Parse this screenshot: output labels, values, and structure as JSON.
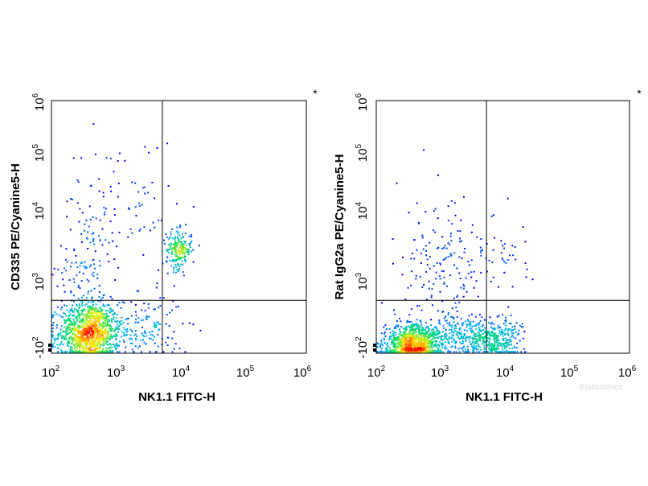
{
  "chart_data": [
    {
      "type": "scatter",
      "subtype": "flow-cytometry-density-dot-plot",
      "title": "",
      "xlabel": "NK1.1 FITC-H",
      "ylabel": "CD335 PE/Cyanine5-H",
      "x_scale": "log",
      "y_scale": "log",
      "xlim": [
        100,
        1000000
      ],
      "ylim": [
        -100,
        1000000
      ],
      "x_ticks": [
        {
          "base": "10",
          "exp": "2"
        },
        {
          "base": "10",
          "exp": "3"
        },
        {
          "base": "10",
          "exp": "4"
        },
        {
          "base": "10",
          "exp": "5"
        },
        {
          "base": "10",
          "exp": "6"
        }
      ],
      "y_ticks": [
        {
          "base": "-10",
          "exp": "2"
        },
        {
          "base": "10",
          "exp": "3"
        },
        {
          "base": "10",
          "exp": "4"
        },
        {
          "base": "10",
          "exp": "5"
        },
        {
          "base": "10",
          "exp": "6"
        }
      ],
      "gate": {
        "x": 5500,
        "y": 1300
      },
      "corner_mark": "*",
      "color_scale": [
        "#0000ff",
        "#00aaff",
        "#00dd66",
        "#ffee00",
        "#ff0000"
      ],
      "populations": [
        {
          "x": 400,
          "y": 450,
          "spread_x": 0.24,
          "spread_y": 0.22,
          "count": 1100
        },
        {
          "x": 350,
          "y": 3500,
          "spread_x": 0.22,
          "spread_y": 0.45,
          "count": 120
        },
        {
          "x": 10000,
          "y": 7000,
          "spread_x": 0.1,
          "spread_y": 0.14,
          "count": 200
        },
        {
          "x": 3000,
          "y": 500,
          "spread_x": 0.3,
          "spread_y": 0.25,
          "count": 150
        },
        {
          "x": 1200,
          "y": 30000,
          "spread_x": 0.45,
          "spread_y": 0.5,
          "count": 90
        }
      ]
    },
    {
      "type": "scatter",
      "subtype": "flow-cytometry-density-dot-plot",
      "title": "",
      "xlabel": "NK1.1 FITC-H",
      "ylabel": "Rat IgG2a PE/Cyanine5-H",
      "x_scale": "log",
      "y_scale": "log",
      "xlim": [
        100,
        1000000
      ],
      "ylim": [
        -100,
        1000000
      ],
      "x_ticks": [
        {
          "base": "10",
          "exp": "2"
        },
        {
          "base": "10",
          "exp": "3"
        },
        {
          "base": "10",
          "exp": "4"
        },
        {
          "base": "10",
          "exp": "5"
        },
        {
          "base": "10",
          "exp": "6"
        }
      ],
      "y_ticks": [
        {
          "base": "-10",
          "exp": "2"
        },
        {
          "base": "10",
          "exp": "3"
        },
        {
          "base": "10",
          "exp": "4"
        },
        {
          "base": "10",
          "exp": "5"
        },
        {
          "base": "10",
          "exp": "6"
        }
      ],
      "gate": {
        "x": 5500,
        "y": 1300
      },
      "corner_mark": "*",
      "color_scale": [
        "#0000ff",
        "#00aaff",
        "#00dd66",
        "#ffee00",
        "#ff0000"
      ],
      "populations": [
        {
          "x": 380,
          "y": 300,
          "spread_x": 0.22,
          "spread_y": 0.14,
          "count": 1000
        },
        {
          "x": 8000,
          "y": 350,
          "spread_x": 0.2,
          "spread_y": 0.14,
          "count": 250
        },
        {
          "x": 2200,
          "y": 400,
          "spread_x": 0.35,
          "spread_y": 0.16,
          "count": 350
        },
        {
          "x": 1000,
          "y": 6000,
          "spread_x": 0.35,
          "spread_y": 0.5,
          "count": 150
        },
        {
          "x": 8000,
          "y": 5000,
          "spread_x": 0.35,
          "spread_y": 0.35,
          "count": 50
        }
      ]
    }
  ],
  "watermark": "Elabscience"
}
